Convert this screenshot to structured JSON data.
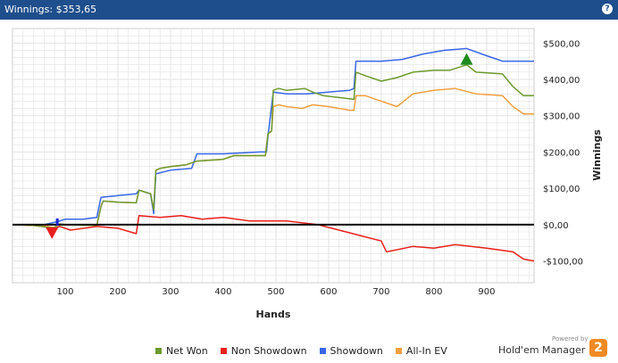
{
  "window": {
    "title": "Winnings: $353,65",
    "help_glyph": "?"
  },
  "colors": {
    "net_won": "#6e9a2f",
    "non_showdown": "#e8201e",
    "showdown": "#3a66e8",
    "all_in_ev": "#f0a040",
    "zero_line": "#000000",
    "grid": "#e2e2e2"
  },
  "chart_data": {
    "type": "line",
    "xlabel": "Hands",
    "ylabel": "Winnings",
    "xlim": [
      0,
      990
    ],
    "ylim": [
      -160,
      540
    ],
    "x_ticks": [
      100,
      200,
      300,
      400,
      500,
      600,
      700,
      800,
      900
    ],
    "y_ticks": [
      -100,
      0,
      100,
      200,
      300,
      400,
      500
    ],
    "y_tick_labels": [
      "-$100,00",
      "$0,00",
      "$100,00",
      "$200,00",
      "$300,00",
      "$400,00",
      "$500,00"
    ],
    "grid": true,
    "legend_position": "bottom",
    "series": [
      {
        "name": "Net Won",
        "key": "net_won",
        "points": [
          [
            0,
            0
          ],
          [
            40,
            -2
          ],
          [
            70,
            -8
          ],
          [
            78,
            -10
          ],
          [
            82,
            -5
          ],
          [
            90,
            2
          ],
          [
            100,
            0
          ],
          [
            160,
            -2
          ],
          [
            168,
            50
          ],
          [
            172,
            65
          ],
          [
            200,
            62
          ],
          [
            235,
            60
          ],
          [
            240,
            95
          ],
          [
            262,
            85
          ],
          [
            268,
            40
          ],
          [
            272,
            150
          ],
          [
            280,
            155
          ],
          [
            300,
            160
          ],
          [
            330,
            165
          ],
          [
            350,
            175
          ],
          [
            400,
            180
          ],
          [
            420,
            190
          ],
          [
            480,
            190
          ],
          [
            485,
            250
          ],
          [
            492,
            258
          ],
          [
            495,
            370
          ],
          [
            505,
            375
          ],
          [
            520,
            370
          ],
          [
            555,
            375
          ],
          [
            570,
            365
          ],
          [
            590,
            355
          ],
          [
            620,
            350
          ],
          [
            648,
            345
          ],
          [
            652,
            420
          ],
          [
            670,
            410
          ],
          [
            700,
            395
          ],
          [
            730,
            405
          ],
          [
            760,
            420
          ],
          [
            800,
            425
          ],
          [
            830,
            425
          ],
          [
            862,
            440
          ],
          [
            880,
            420
          ],
          [
            930,
            415
          ],
          [
            950,
            380
          ],
          [
            970,
            355
          ],
          [
            990,
            355
          ]
        ]
      },
      {
        "name": "Non Showdown",
        "key": "non_showdown",
        "points": [
          [
            0,
            0
          ],
          [
            40,
            -2
          ],
          [
            70,
            -8
          ],
          [
            78,
            -12
          ],
          [
            90,
            -5
          ],
          [
            110,
            -15
          ],
          [
            160,
            -5
          ],
          [
            200,
            -10
          ],
          [
            235,
            -25
          ],
          [
            240,
            25
          ],
          [
            280,
            20
          ],
          [
            320,
            25
          ],
          [
            360,
            15
          ],
          [
            400,
            20
          ],
          [
            450,
            10
          ],
          [
            520,
            10
          ],
          [
            580,
            0
          ],
          [
            620,
            -15
          ],
          [
            660,
            -30
          ],
          [
            700,
            -45
          ],
          [
            710,
            -75
          ],
          [
            760,
            -60
          ],
          [
            800,
            -65
          ],
          [
            840,
            -55
          ],
          [
            900,
            -65
          ],
          [
            950,
            -75
          ],
          [
            970,
            -95
          ],
          [
            990,
            -100
          ]
        ]
      },
      {
        "name": "Showdown",
        "key": "showdown",
        "points": [
          [
            0,
            0
          ],
          [
            60,
            0
          ],
          [
            85,
            8
          ],
          [
            100,
            15
          ],
          [
            135,
            15
          ],
          [
            160,
            20
          ],
          [
            168,
            75
          ],
          [
            200,
            80
          ],
          [
            235,
            85
          ],
          [
            240,
            95
          ],
          [
            262,
            85
          ],
          [
            268,
            30
          ],
          [
            272,
            140
          ],
          [
            300,
            150
          ],
          [
            340,
            155
          ],
          [
            350,
            195
          ],
          [
            400,
            195
          ],
          [
            470,
            200
          ],
          [
            482,
            200
          ],
          [
            485,
            245
          ],
          [
            495,
            365
          ],
          [
            520,
            360
          ],
          [
            560,
            360
          ],
          [
            600,
            365
          ],
          [
            640,
            370
          ],
          [
            648,
            375
          ],
          [
            652,
            450
          ],
          [
            700,
            450
          ],
          [
            740,
            455
          ],
          [
            780,
            470
          ],
          [
            820,
            480
          ],
          [
            862,
            485
          ],
          [
            900,
            465
          ],
          [
            930,
            450
          ],
          [
            990,
            450
          ]
        ]
      },
      {
        "name": "All-In EV",
        "key": "all_in_ev",
        "points": [
          [
            0,
            0
          ],
          [
            60,
            -3
          ],
          [
            78,
            -8
          ],
          [
            90,
            0
          ],
          [
            100,
            0
          ],
          [
            160,
            -2
          ],
          [
            168,
            50
          ],
          [
            172,
            65
          ],
          [
            200,
            62
          ],
          [
            235,
            60
          ],
          [
            240,
            95
          ],
          [
            262,
            85
          ],
          [
            268,
            40
          ],
          [
            272,
            150
          ],
          [
            280,
            155
          ],
          [
            300,
            160
          ],
          [
            330,
            165
          ],
          [
            350,
            175
          ],
          [
            400,
            180
          ],
          [
            420,
            190
          ],
          [
            480,
            190
          ],
          [
            485,
            250
          ],
          [
            492,
            258
          ],
          [
            495,
            325
          ],
          [
            505,
            330
          ],
          [
            520,
            325
          ],
          [
            550,
            320
          ],
          [
            570,
            330
          ],
          [
            600,
            325
          ],
          [
            640,
            315
          ],
          [
            648,
            315
          ],
          [
            652,
            355
          ],
          [
            670,
            355
          ],
          [
            700,
            340
          ],
          [
            730,
            325
          ],
          [
            760,
            360
          ],
          [
            800,
            370
          ],
          [
            840,
            375
          ],
          [
            880,
            360
          ],
          [
            930,
            355
          ],
          [
            950,
            325
          ],
          [
            970,
            305
          ],
          [
            990,
            305
          ]
        ]
      }
    ],
    "markers": [
      {
        "name": "Min point",
        "shape": "triangle-down",
        "color": "#e8201e",
        "x": 75,
        "y": -25
      },
      {
        "name": "Max point",
        "shape": "triangle-up",
        "color": "#1e8a1e",
        "x": 862,
        "y": 455
      },
      {
        "name": "Start marker",
        "shape": "tick",
        "color": "#1e1ed0",
        "x": 85,
        "y": 0
      }
    ]
  },
  "legend": [
    {
      "label": "Net Won",
      "key": "net_won"
    },
    {
      "label": "Non Showdown",
      "key": "non_showdown"
    },
    {
      "label": "Showdown",
      "key": "showdown"
    },
    {
      "label": "All-In EV",
      "key": "all_in_ev"
    }
  ],
  "branding": {
    "powered_by": "Powered by",
    "product": "Hold'em Manager",
    "logo_text": "2"
  }
}
